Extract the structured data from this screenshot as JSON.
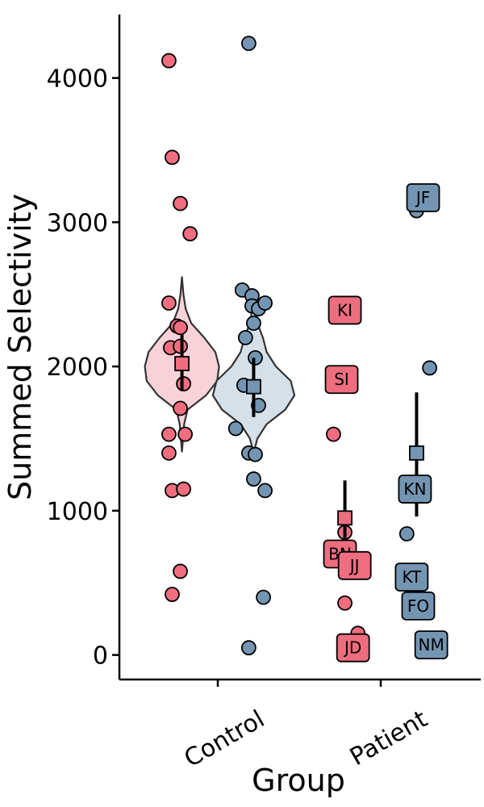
{
  "chart_data": {
    "type": "scatter",
    "subtype": "violin-jitter",
    "title": "",
    "xlabel": "Group",
    "ylabel": "Summed Selectivity",
    "ylim": [
      -170,
      4440
    ],
    "yticks": [
      0,
      1000,
      2000,
      3000,
      4000
    ],
    "categories": [
      "Control",
      "Patient"
    ],
    "grid": false,
    "colors": {
      "red": "#ee6e80",
      "blue": "#7395b2",
      "red_light": "#f8d2d9",
      "blue_light": "#d5e0e8"
    },
    "series": [
      {
        "group": "Control",
        "color": "red",
        "offset": -0.22,
        "violin": [
          [
            1410,
            0
          ],
          [
            1500,
            0.006
          ],
          [
            1600,
            0.012
          ],
          [
            1700,
            0.03
          ],
          [
            1800,
            0.13
          ],
          [
            1900,
            0.19
          ],
          [
            2000,
            0.2
          ],
          [
            2100,
            0.18
          ],
          [
            2200,
            0.12
          ],
          [
            2300,
            0.05
          ],
          [
            2400,
            0.02
          ],
          [
            2500,
            0.008
          ],
          [
            2620,
            0
          ]
        ],
        "mean": 2020,
        "ci": [
          1830,
          2220
        ],
        "points": [
          {
            "dx": -0.08,
            "y": 4120
          },
          {
            "dx": -0.06,
            "y": 3450
          },
          {
            "dx": -0.01,
            "y": 3130
          },
          {
            "dx": 0.05,
            "y": 2920
          },
          {
            "dx": -0.08,
            "y": 2440
          },
          {
            "dx": -0.03,
            "y": 2280
          },
          {
            "dx": -0.01,
            "y": 2270
          },
          {
            "dx": -0.07,
            "y": 2130
          },
          {
            "dx": -0.01,
            "y": 2140
          },
          {
            "dx": 0.01,
            "y": 1880
          },
          {
            "dx": -0.01,
            "y": 1710
          },
          {
            "dx": -0.08,
            "y": 1530
          },
          {
            "dx": 0.02,
            "y": 1530
          },
          {
            "dx": -0.08,
            "y": 1400
          },
          {
            "dx": -0.06,
            "y": 1140
          },
          {
            "dx": 0.01,
            "y": 1150
          },
          {
            "dx": -0.01,
            "y": 580
          },
          {
            "dx": -0.06,
            "y": 420
          }
        ]
      },
      {
        "group": "Control",
        "color": "blue",
        "offset": 0.22,
        "violin": [
          [
            1400,
            0
          ],
          [
            1500,
            0.02
          ],
          [
            1600,
            0.07
          ],
          [
            1700,
            0.17
          ],
          [
            1800,
            0.22
          ],
          [
            1900,
            0.2
          ],
          [
            2000,
            0.12
          ],
          [
            2100,
            0.07
          ],
          [
            2200,
            0.05
          ],
          [
            2300,
            0.02
          ],
          [
            2400,
            0.008
          ],
          [
            2500,
            0
          ]
        ],
        "mean": 1860,
        "ci": [
          1650,
          2060
        ],
        "points": [
          {
            "dx": -0.03,
            "y": 4240
          },
          {
            "dx": -0.07,
            "y": 2530
          },
          {
            "dx": -0.01,
            "y": 2490
          },
          {
            "dx": -0.01,
            "y": 2420
          },
          {
            "dx": 0.03,
            "y": 2400
          },
          {
            "dx": 0.07,
            "y": 2440
          },
          {
            "dx": 0.0,
            "y": 2300
          },
          {
            "dx": -0.05,
            "y": 2200
          },
          {
            "dx": 0.01,
            "y": 2060
          },
          {
            "dx": -0.06,
            "y": 1870
          },
          {
            "dx": 0.03,
            "y": 1730
          },
          {
            "dx": -0.11,
            "y": 1570
          },
          {
            "dx": -0.03,
            "y": 1400
          },
          {
            "dx": 0.01,
            "y": 1390
          },
          {
            "dx": 0.0,
            "y": 1220
          },
          {
            "dx": 0.07,
            "y": 1140
          },
          {
            "dx": 0.06,
            "y": 400
          },
          {
            "dx": -0.03,
            "y": 50
          }
        ]
      },
      {
        "group": "Patient",
        "color": "red",
        "offset": -0.22,
        "mean": 950,
        "ci": [
          670,
          1210
        ],
        "points": [
          {
            "dx": -0.07,
            "y": 1530
          },
          {
            "dx": 0.0,
            "y": 850
          },
          {
            "dx": 0.0,
            "y": 360
          },
          {
            "dx": 0.08,
            "y": 150
          }
        ],
        "labels": [
          {
            "text": "KI",
            "dx": 0.0,
            "y": 2390
          },
          {
            "text": "SI",
            "dx": -0.02,
            "y": 1910
          },
          {
            "text": "BN",
            "dx": -0.03,
            "y": 700
          },
          {
            "text": "JJ",
            "dx": 0.06,
            "y": 620
          },
          {
            "text": "JD",
            "dx": 0.05,
            "y": 50
          }
        ]
      },
      {
        "group": "Patient",
        "color": "blue",
        "offset": 0.22,
        "mean": 1400,
        "ci": [
          960,
          1820
        ],
        "points": [
          {
            "dx": 0.0,
            "y": 3080
          },
          {
            "dx": 0.08,
            "y": 1990
          },
          {
            "dx": -0.06,
            "y": 840
          }
        ],
        "labels": [
          {
            "text": "JF",
            "dx": 0.04,
            "y": 3170
          },
          {
            "text": "KN",
            "dx": -0.01,
            "y": 1150
          },
          {
            "text": "KT",
            "dx": -0.03,
            "y": 540
          },
          {
            "text": "FO",
            "dx": 0.01,
            "y": 340
          },
          {
            "text": "NM",
            "dx": 0.09,
            "y": 70
          }
        ]
      }
    ]
  }
}
